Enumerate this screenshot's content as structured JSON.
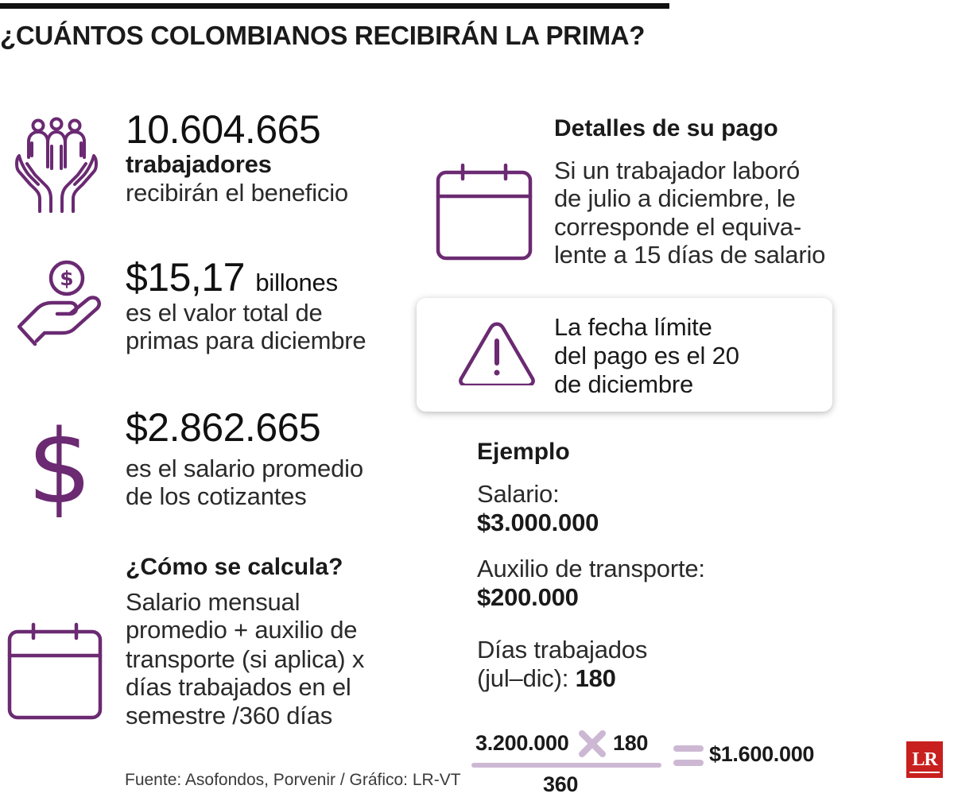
{
  "headline": "¿CUÁNTOS COLOMBIANOS RECIBIRÁN LA PRIMA?",
  "colors": {
    "accent": "#6b2a72",
    "accent_light": "#cdb8d4",
    "logo_red": "#c8201f"
  },
  "icons": [
    "family-hands-icon",
    "coin-hand-icon",
    "dollar-sign-icon",
    "calendar-icon",
    "calendar-icon",
    "warning-triangle-icon"
  ],
  "stats": {
    "workers": {
      "value": "10.604.665",
      "line1": "trabajadores",
      "line2": "recibirán el beneficio"
    },
    "total": {
      "value": "$15,17",
      "unit": "billones",
      "line1": "es el valor total de",
      "line2": "primas para diciembre"
    },
    "salary": {
      "value": "$2.862.665",
      "line1": "es el salario promedio",
      "line2": "de los cotizantes"
    }
  },
  "calc": {
    "title": "¿Cómo se calcula?",
    "lines": [
      "Salario mensual",
      "promedio + auxilio de",
      "transporte (si aplica) x",
      "días trabajados en el",
      "semestre /360 días"
    ]
  },
  "details": {
    "title": "Detalles de su pago",
    "lines": [
      "Si un trabajador laboró",
      "de julio a diciembre, le",
      "corresponde el equiva-",
      "lente a 15 días de salario"
    ]
  },
  "alert": {
    "lines": [
      "La fecha límite",
      "del pago es el 20",
      "de diciembre"
    ]
  },
  "example": {
    "title": "Ejemplo",
    "salary_label": "Salario:",
    "salary_value": "$3.000.000",
    "transport_label": "Auxilio de transporte:",
    "transport_value": "$200.000",
    "days_label_1": "Días trabajados",
    "days_label_2": "(jul–dic):",
    "days_value": "180"
  },
  "formula": {
    "numerator": "3.200.000",
    "multiplier": "180",
    "denominator": "360",
    "result": "$1.600.000"
  },
  "source": "Fuente: Asofondos, Porvenir / Gráfico: LR-VT",
  "logo": "LR"
}
